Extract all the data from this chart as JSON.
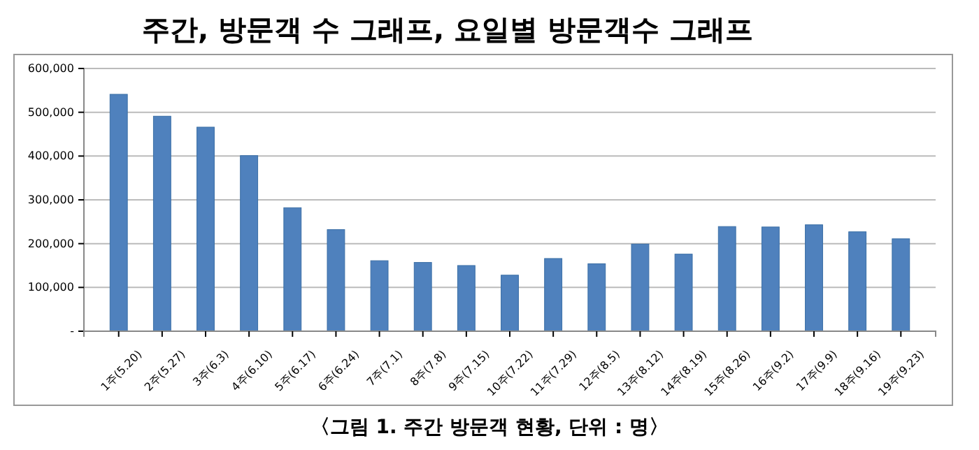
{
  "chart_data": {
    "type": "bar",
    "title": "주간,  방문객 수 그래프, 요일별 방문객수 그래프",
    "categories": [
      "1주(5.20)",
      "2주(5.27)",
      "3주(6.3)",
      "4주(6.10)",
      "5주(6.17)",
      "6주(6.24)",
      "7주(7.1)",
      "8주(7.8)",
      "9주(7.15)",
      "10주(7.22)",
      "11주(7.29)",
      "12주(8.5)",
      "13주(8.12)",
      "14주(8.19)",
      "15주(8.26)",
      "16주(9.2)",
      "17주(9.9)",
      "18주(9.16)",
      "19주(9.23)"
    ],
    "values": [
      541000,
      491000,
      466000,
      401000,
      282000,
      232000,
      161000,
      157000,
      150000,
      128000,
      166000,
      154000,
      199000,
      176000,
      239000,
      238000,
      243000,
      227000,
      211000
    ],
    "color": "#4f81bd",
    "ylim": [
      0,
      600000
    ],
    "yticks": [
      {
        "value": 0,
        "label": "-"
      },
      {
        "value": 100000,
        "label": "100,000"
      },
      {
        "value": 200000,
        "label": "200,000"
      },
      {
        "value": 300000,
        "label": "300,000"
      },
      {
        "value": 400000,
        "label": "400,000"
      },
      {
        "value": 500000,
        "label": "500,000"
      },
      {
        "value": 600000,
        "label": "600,000"
      }
    ],
    "grid": "y",
    "annotations": [
      "〈그림 1. 주간 방문객 현황, 단위 : 명〉"
    ]
  }
}
